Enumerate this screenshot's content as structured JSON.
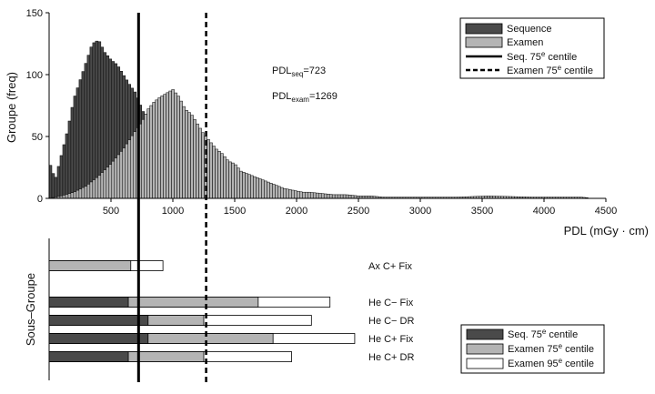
{
  "colors": {
    "sequence": "#4a4a4a",
    "examen": "#b4b4b4",
    "examen95": "#ffffff",
    "outline": "#000000"
  },
  "chart_data": [
    {
      "type": "bar",
      "subtype": "histogram-overlay",
      "ylabel": "Groupe (freq)",
      "xlabel": "PDL (mGy · cm)",
      "xlim": [
        0,
        4500
      ],
      "ylim": [
        0,
        150
      ],
      "xticks": [
        500,
        1000,
        1500,
        2000,
        2500,
        3000,
        3500,
        4000,
        4500
      ],
      "yticks": [
        0,
        50,
        100,
        150
      ],
      "bin_width": 22,
      "series": [
        {
          "name": "Sequence",
          "color": "sequence",
          "points": [
            [
              0,
              30
            ],
            [
              50,
              15
            ],
            [
              100,
              35
            ],
            [
              150,
              55
            ],
            [
              200,
              80
            ],
            [
              250,
              95
            ],
            [
              300,
              110
            ],
            [
              350,
              125
            ],
            [
              400,
              128
            ],
            [
              450,
              118
            ],
            [
              500,
              112
            ],
            [
              550,
              108
            ],
            [
              600,
              100
            ],
            [
              650,
              92
            ],
            [
              700,
              85
            ],
            [
              750,
              72
            ],
            [
              800,
              62
            ],
            [
              850,
              52
            ],
            [
              900,
              45
            ],
            [
              950,
              38
            ],
            [
              1000,
              32
            ],
            [
              1050,
              26
            ],
            [
              1100,
              20
            ],
            [
              1150,
              16
            ],
            [
              1200,
              12
            ],
            [
              1250,
              9
            ],
            [
              1300,
              7
            ],
            [
              1350,
              5
            ],
            [
              1400,
              4
            ],
            [
              1450,
              3
            ],
            [
              1500,
              2
            ],
            [
              1600,
              2
            ],
            [
              1700,
              1
            ],
            [
              1800,
              1
            ],
            [
              1900,
              0
            ]
          ]
        },
        {
          "name": "Examen",
          "color": "examen",
          "points": [
            [
              0,
              0
            ],
            [
              100,
              2
            ],
            [
              200,
              5
            ],
            [
              300,
              10
            ],
            [
              400,
              18
            ],
            [
              500,
              28
            ],
            [
              600,
              40
            ],
            [
              700,
              55
            ],
            [
              750,
              62
            ],
            [
              800,
              72
            ],
            [
              850,
              78
            ],
            [
              900,
              82
            ],
            [
              950,
              85
            ],
            [
              1000,
              88
            ],
            [
              1050,
              82
            ],
            [
              1100,
              72
            ],
            [
              1150,
              68
            ],
            [
              1200,
              60
            ],
            [
              1250,
              52
            ],
            [
              1300,
              46
            ],
            [
              1350,
              40
            ],
            [
              1400,
              36
            ],
            [
              1450,
              30
            ],
            [
              1500,
              28
            ],
            [
              1550,
              22
            ],
            [
              1600,
              20
            ],
            [
              1650,
              18
            ],
            [
              1700,
              16
            ],
            [
              1750,
              14
            ],
            [
              1800,
              12
            ],
            [
              1850,
              10
            ],
            [
              1900,
              8
            ],
            [
              1950,
              7
            ],
            [
              2000,
              6
            ],
            [
              2050,
              5
            ],
            [
              2100,
              5
            ],
            [
              2200,
              4
            ],
            [
              2300,
              3
            ],
            [
              2400,
              3
            ],
            [
              2500,
              2
            ],
            [
              2600,
              2
            ],
            [
              2700,
              1
            ],
            [
              2800,
              1
            ],
            [
              2900,
              1
            ],
            [
              3000,
              1
            ],
            [
              3300,
              1
            ],
            [
              3550,
              2
            ],
            [
              3900,
              1
            ],
            [
              4300,
              1
            ],
            [
              4400,
              0
            ]
          ]
        }
      ],
      "reference_lines": [
        {
          "name": "Seq. 75e centile",
          "x": 723,
          "style": "solid"
        },
        {
          "name": "Examen 75e centile",
          "x": 1269,
          "style": "dashed"
        }
      ],
      "annotations": [
        {
          "base": "PDL",
          "sub": "seq",
          "value": "=723"
        },
        {
          "base": "PDL",
          "sub": "exam",
          "value": "=1269"
        }
      ],
      "legend": {
        "position": "top-right",
        "items": [
          {
            "label": "Sequence",
            "kind": "box",
            "color": "sequence"
          },
          {
            "label": "Examen",
            "kind": "box",
            "color": "examen"
          },
          {
            "label": "Seq. 75",
            "sup": "e",
            "suffix": " centile",
            "kind": "line",
            "dash": false
          },
          {
            "label": "Examen 75",
            "sup": "e",
            "suffix": " centile",
            "kind": "line",
            "dash": true
          }
        ]
      }
    },
    {
      "type": "bar",
      "subtype": "stacked-horizontal",
      "ylabel": "Sous–Groupe",
      "categories": [
        "Ax C+ Fix",
        "He C− Fix",
        "He C− DR",
        "He C+ Fix",
        "He C+ DR"
      ],
      "seq75": [
        null,
        640,
        800,
        800,
        640
      ],
      "exam75": [
        660,
        1690,
        1250,
        1810,
        1250
      ],
      "exam95": [
        920,
        2270,
        2120,
        2470,
        1960
      ],
      "legend": {
        "position": "bottom-right",
        "items": [
          {
            "label": "Seq. 75",
            "sup": "e",
            "suffix": " centile",
            "color": "sequence"
          },
          {
            "label": "Examen 75",
            "sup": "e",
            "suffix": " centile",
            "color": "examen"
          },
          {
            "label": "Examen 95",
            "sup": "e",
            "suffix": " centile",
            "color": "examen95"
          }
        ]
      }
    }
  ]
}
